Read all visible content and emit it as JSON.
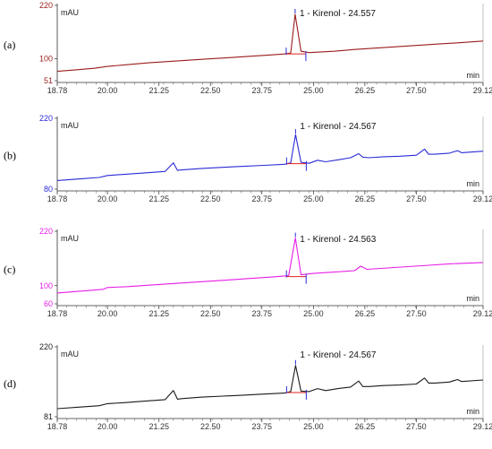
{
  "chart_data": [
    {
      "type": "line",
      "panel_label": "(a)",
      "color": "#9b1c1c",
      "ylabel": "mAU",
      "xlabel": "min",
      "xlim": [
        18.78,
        29.12
      ],
      "ylim": [
        51,
        220
      ],
      "y_ticks": [
        220,
        100,
        51
      ],
      "x_ticks": [
        "18.78",
        "20.00",
        "21.25",
        "22.50",
        "23.75",
        "25.00",
        "26.25",
        "27.50",
        "29.12"
      ],
      "peak": {
        "label": "1 - Kirenol - 24.557",
        "x": 24.557,
        "height": 200
      },
      "baseline": {
        "start": 72,
        "end": 140
      },
      "x": [
        18.78,
        19.2,
        19.7,
        20.0,
        20.5,
        21.0,
        21.5,
        22.0,
        22.5,
        23.0,
        23.5,
        24.0,
        24.3,
        24.45,
        24.557,
        24.7,
        24.9,
        25.5,
        26.0,
        26.5,
        27.0,
        27.5,
        28.0,
        28.5,
        29.12
      ],
      "y": [
        72,
        75,
        79,
        83,
        87,
        91,
        94,
        97,
        100,
        103,
        106,
        109,
        111,
        113,
        200,
        117,
        114,
        117,
        121,
        124,
        127,
        130,
        133,
        136,
        140
      ]
    },
    {
      "type": "line",
      "panel_label": "(b)",
      "color": "#2b2bd6",
      "ylabel": "mAU",
      "xlabel": "min",
      "xlim": [
        18.78,
        29.12
      ],
      "ylim": [
        80,
        220
      ],
      "y_ticks": [
        220,
        80
      ],
      "x_ticks": [
        "18.78",
        "20.00",
        "21.25",
        "22.50",
        "23.75",
        "25.00",
        "26.25",
        "27.50",
        "29.12"
      ],
      "peak": {
        "label": "1 - Kirenol - 24.567",
        "x": 24.567,
        "height": 188
      },
      "x": [
        18.78,
        19.3,
        19.8,
        20.0,
        20.4,
        20.9,
        21.4,
        21.6,
        21.7,
        21.8,
        22.3,
        22.8,
        23.3,
        23.8,
        24.3,
        24.45,
        24.567,
        24.7,
        24.9,
        25.1,
        25.3,
        25.6,
        25.9,
        26.1,
        26.2,
        26.35,
        26.7,
        27.1,
        27.5,
        27.7,
        27.8,
        27.95,
        28.3,
        28.5,
        28.6,
        29.12
      ],
      "y": [
        97,
        100,
        103,
        107,
        109,
        112,
        115,
        132,
        117,
        118,
        121,
        123,
        125,
        127,
        129,
        132,
        188,
        133,
        131,
        137,
        134,
        138,
        142,
        150,
        143,
        142,
        144,
        145,
        147,
        159,
        149,
        149,
        151,
        156,
        152,
        155
      ]
    },
    {
      "type": "line",
      "panel_label": "(c)",
      "color": "#e61ee6",
      "ylabel": "mAU",
      "xlabel": "min",
      "xlim": [
        18.78,
        29.12
      ],
      "ylim": [
        60,
        220
      ],
      "y_ticks": [
        220,
        100,
        60
      ],
      "x_ticks": [
        "18.78",
        "20.00",
        "21.25",
        "22.50",
        "23.75",
        "25.00",
        "26.25",
        "27.50",
        "29.12"
      ],
      "peak": {
        "label": "1 - Kirenol - 24.563",
        "x": 24.563,
        "height": 205
      },
      "x": [
        18.78,
        19.5,
        19.9,
        20.0,
        20.5,
        21.0,
        21.5,
        22.0,
        22.5,
        23.0,
        23.5,
        24.0,
        24.4,
        24.563,
        24.7,
        25.0,
        25.5,
        26.0,
        26.15,
        26.3,
        26.8,
        27.3,
        27.8,
        28.3,
        29.12
      ],
      "y": [
        84,
        89,
        92,
        96,
        98,
        101,
        104,
        107,
        110,
        113,
        116,
        119,
        122,
        205,
        124,
        127,
        130,
        133,
        143,
        136,
        139,
        142,
        145,
        148,
        151
      ]
    },
    {
      "type": "line",
      "panel_label": "(d)",
      "color": "#1a1a1a",
      "ylabel": "mAU",
      "xlabel": "min",
      "xlim": [
        18.78,
        29.12
      ],
      "ylim": [
        81,
        220
      ],
      "y_ticks": [
        220,
        81
      ],
      "x_ticks": [
        "18.78",
        "20.00",
        "21.25",
        "22.50",
        "23.75",
        "25.00",
        "26.25",
        "27.50",
        "29.12"
      ],
      "peak": {
        "label": "1 - Kirenol - 24.567",
        "x": 24.567,
        "height": 183
      },
      "x": [
        18.78,
        19.3,
        19.8,
        20.0,
        20.4,
        20.9,
        21.4,
        21.6,
        21.7,
        21.8,
        22.3,
        22.8,
        23.3,
        23.8,
        24.3,
        24.45,
        24.567,
        24.7,
        24.9,
        25.1,
        25.3,
        25.6,
        25.9,
        26.1,
        26.2,
        26.35,
        26.7,
        27.1,
        27.5,
        27.7,
        27.8,
        27.95,
        28.3,
        28.5,
        28.6,
        29.12
      ],
      "y": [
        97,
        100,
        103,
        107,
        109,
        112,
        115,
        133,
        116,
        117,
        120,
        122,
        124,
        126,
        128,
        131,
        183,
        132,
        131,
        137,
        133,
        137,
        140,
        152,
        141,
        141,
        143,
        144,
        146,
        158,
        148,
        148,
        150,
        155,
        151,
        154
      ]
    }
  ]
}
